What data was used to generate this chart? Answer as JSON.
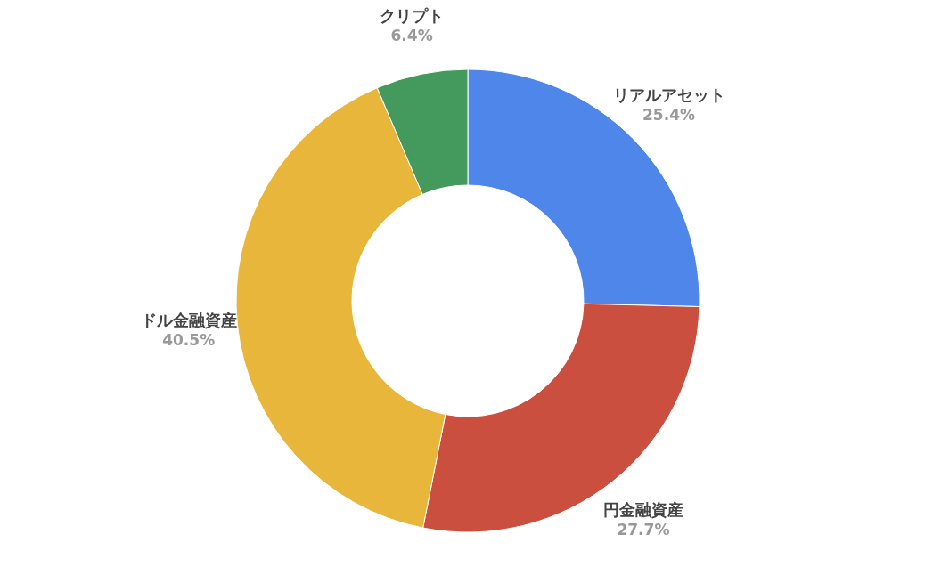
{
  "chart_data": {
    "type": "donut",
    "categories": [
      "リアルアセット",
      "円金融資産",
      "ドル金融資産",
      "クリプト"
    ],
    "values": [
      25.4,
      27.7,
      40.5,
      6.4
    ],
    "colors": [
      "#4f86ea",
      "#cb4f3f",
      "#e8b63b",
      "#449a5d"
    ],
    "value_labels": [
      "25.4%",
      "27.7%",
      "40.5%",
      "6.4%"
    ]
  }
}
